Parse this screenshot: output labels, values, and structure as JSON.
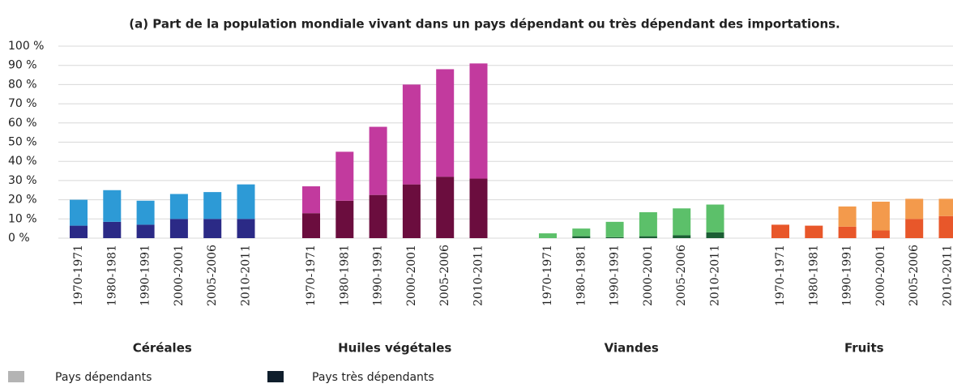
{
  "chart_data": {
    "type": "grouped-stacked-bar",
    "title": "(a) Part de la population mondiale vivant dans un pays dépendant ou très dépendant des importations.",
    "categories": [
      "1970-1971",
      "1980-1981",
      "1990-1991",
      "2000-2001",
      "2005-2006",
      "2010-2011"
    ],
    "groups": [
      {
        "name": "Céréales",
        "colors": [
          "#2b2a86",
          "#2d9ad6"
        ]
      },
      {
        "name": "Huiles végétales",
        "colors": [
          "#6b0d3e",
          "#c23a9e"
        ]
      },
      {
        "name": "Viandes",
        "colors": [
          "#1b5e34",
          "#5cc06a"
        ]
      },
      {
        "name": "Fruits",
        "colors": [
          "#e8572a",
          "#f39a4c"
        ]
      }
    ],
    "series": [
      {
        "name": "Pays très dépendants",
        "color": "#0f1e2c",
        "values": [
          [
            6.5,
            8.5,
            7,
            10,
            10,
            10
          ],
          [
            13,
            19.5,
            22.5,
            28,
            32,
            31
          ],
          [
            0,
            1,
            0.5,
            1,
            1.5,
            3
          ],
          [
            7,
            6.5,
            6,
            4,
            10,
            11.5
          ]
        ]
      },
      {
        "name": "Pays dépendants",
        "color": "#b4b4b4",
        "values": [
          [
            13.5,
            16.5,
            12.5,
            13,
            14,
            18
          ],
          [
            14,
            25.5,
            35.5,
            52,
            56,
            60
          ],
          [
            2.5,
            4,
            8,
            12.5,
            14,
            14.5
          ],
          [
            0,
            0,
            10.5,
            15,
            10.5,
            9
          ]
        ]
      }
    ],
    "ylim": [
      0,
      100
    ],
    "yticks": [
      {
        "value": 0,
        "label": "0 %"
      },
      {
        "value": 10,
        "label": "10 %"
      },
      {
        "value": 20,
        "label": "20 %"
      },
      {
        "value": 30,
        "label": "30 %"
      },
      {
        "value": 40,
        "label": "40 %"
      },
      {
        "value": 50,
        "label": "50 %"
      },
      {
        "value": 60,
        "label": "60 %"
      },
      {
        "value": 70,
        "label": "70 %"
      },
      {
        "value": 80,
        "label": "80 %"
      },
      {
        "value": 90,
        "label": "90 %"
      },
      {
        "value": 100,
        "label": "100 %"
      }
    ],
    "grid": true
  }
}
